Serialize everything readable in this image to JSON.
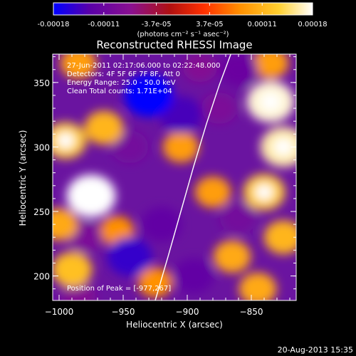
{
  "colorbar": {
    "ticks": [
      "-0.00018",
      "-0.00011",
      "-3.7e-05",
      "3.7e-05",
      "0.00011",
      "0.00018"
    ],
    "tick_values": [
      -0.00018,
      -0.00011,
      -3.7e-05,
      3.7e-05,
      0.00011,
      0.00018
    ],
    "range": [
      -0.00018,
      0.00018
    ],
    "unit_label": "(photons cm⁻² s⁻¹ asec⁻²)",
    "colors": [
      "#0000ff",
      "#5a00a8",
      "#8a1090",
      "#b01010",
      "#ff3000",
      "#ff9000",
      "#ffd030",
      "#ffffff"
    ]
  },
  "plot": {
    "title": "Reconstructed RHESSI Image",
    "info_lines": [
      "27-Jun-2011 02:17:06.000 to 02:22:48.000",
      "Detectors: 4F 5F 6F 7F 8F, Att 0",
      "Energy Range: 25.0 - 50.0 keV",
      "Clean    Total counts: 1.71E+04"
    ],
    "peak_label": "Position of Peak = [-977,267]",
    "xlabel": "Heliocentric X (arcsec)",
    "ylabel": "Heliocentric Y (arcsec)"
  },
  "footer": {
    "timestamp": "20-Aug-2013 15:35"
  },
  "chart_data": {
    "type": "heatmap",
    "title": "Reconstructed RHESSI Image",
    "xlabel": "Heliocentric X (arcsec)",
    "ylabel": "Heliocentric Y (arcsec)",
    "xlim": [
      -1005,
      -815
    ],
    "ylim": [
      181,
      372
    ],
    "x_ticks": [
      -1000,
      -950,
      -900,
      -850
    ],
    "y_ticks": [
      200,
      250,
      300,
      350
    ],
    "x_tick_labels": [
      "−1000",
      "−950",
      "−900",
      "−850"
    ],
    "y_tick_labels": [
      "200",
      "250",
      "300",
      "350"
    ],
    "value_range": [
      -0.00018,
      0.00018
    ],
    "peak_position": [
      -977,
      267
    ],
    "limb_curve": {
      "x": [
        -925,
        -915,
        -905,
        -895,
        -885,
        -875,
        -866
      ],
      "y": [
        181,
        215,
        250,
        285,
        318,
        348,
        372
      ]
    },
    "features": [
      {
        "x": -975,
        "y": 262,
        "value": 0.00018
      },
      {
        "x": -995,
        "y": 305,
        "value": 0.00013
      },
      {
        "x": -965,
        "y": 315,
        "value": 0.00011
      },
      {
        "x": -985,
        "y": 365,
        "value": 9e-05
      },
      {
        "x": -1000,
        "y": 240,
        "value": 0.0001
      },
      {
        "x": -990,
        "y": 205,
        "value": 0.00012
      },
      {
        "x": -955,
        "y": 235,
        "value": 8e-05
      },
      {
        "x": -835,
        "y": 335,
        "value": 0.00017
      },
      {
        "x": -825,
        "y": 300,
        "value": 0.00016
      },
      {
        "x": -840,
        "y": 265,
        "value": 0.00013
      },
      {
        "x": -825,
        "y": 230,
        "value": 0.00011
      },
      {
        "x": -865,
        "y": 215,
        "value": 0.0001
      },
      {
        "x": -845,
        "y": 190,
        "value": 0.0001
      },
      {
        "x": -880,
        "y": 265,
        "value": 9e-05
      },
      {
        "x": -905,
        "y": 300,
        "value": 9e-05
      },
      {
        "x": -925,
        "y": 195,
        "value": 8e-05
      },
      {
        "x": -835,
        "y": 365,
        "value": 9e-05
      },
      {
        "x": -930,
        "y": 340,
        "value": -0.00018
      },
      {
        "x": -905,
        "y": 325,
        "value": -0.00014
      },
      {
        "x": -945,
        "y": 300,
        "value": -0.0001
      },
      {
        "x": -945,
        "y": 215,
        "value": -0.00015
      },
      {
        "x": -920,
        "y": 240,
        "value": -0.00012
      },
      {
        "x": -895,
        "y": 200,
        "value": -0.00012
      },
      {
        "x": -980,
        "y": 230,
        "value": -9e-05
      },
      {
        "x": -860,
        "y": 360,
        "value": -0.00011
      },
      {
        "x": -875,
        "y": 330,
        "value": -9e-05
      },
      {
        "x": -860,
        "y": 245,
        "value": -0.0001
      },
      {
        "x": -985,
        "y": 185,
        "value": -8e-05
      },
      {
        "x": -890,
        "y": 362,
        "value": -8e-05
      }
    ]
  }
}
